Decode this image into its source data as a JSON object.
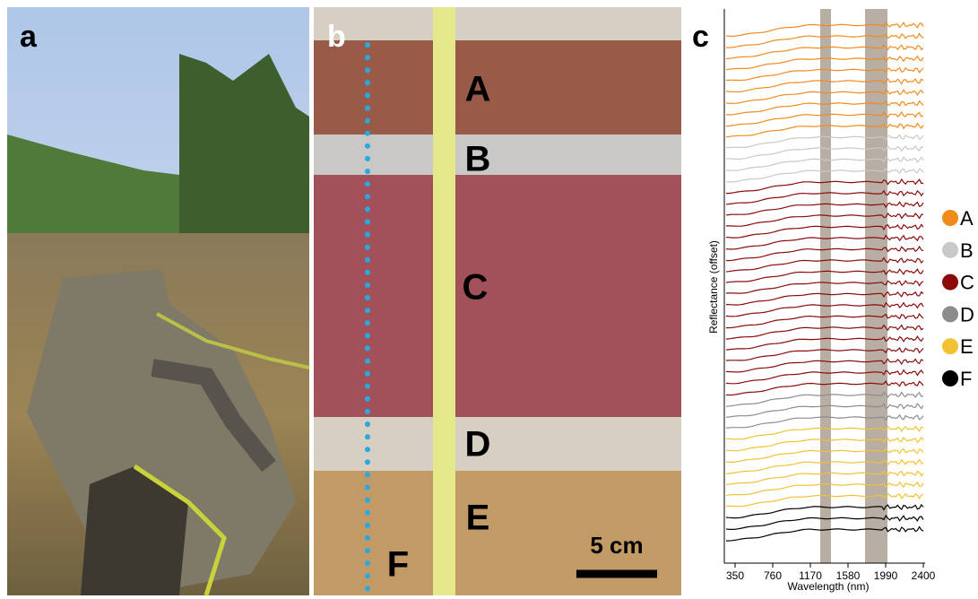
{
  "panels": {
    "a": {
      "label": "a"
    },
    "b": {
      "label": "b",
      "layers": [
        "A",
        "B",
        "C",
        "D",
        "E",
        "F"
      ],
      "scale_bar": "5 cm"
    },
    "c": {
      "label": "c"
    }
  },
  "chart_data": {
    "type": "line",
    "xlabel": "Wavelength (nm)",
    "ylabel": "Reflectance  (offset)",
    "xlim": [
      350,
      2400
    ],
    "xticks": [
      350,
      760,
      1170,
      1580,
      1990,
      2400
    ],
    "legend": [
      {
        "name": "A",
        "color": "#f28a1c"
      },
      {
        "name": "B",
        "color": "#c8c8c8"
      },
      {
        "name": "C",
        "color": "#8b0a0a"
      },
      {
        "name": "D",
        "color": "#8c8c8c"
      },
      {
        "name": "E",
        "color": "#f2c232"
      },
      {
        "name": "F",
        "color": "#000000"
      }
    ]
  }
}
